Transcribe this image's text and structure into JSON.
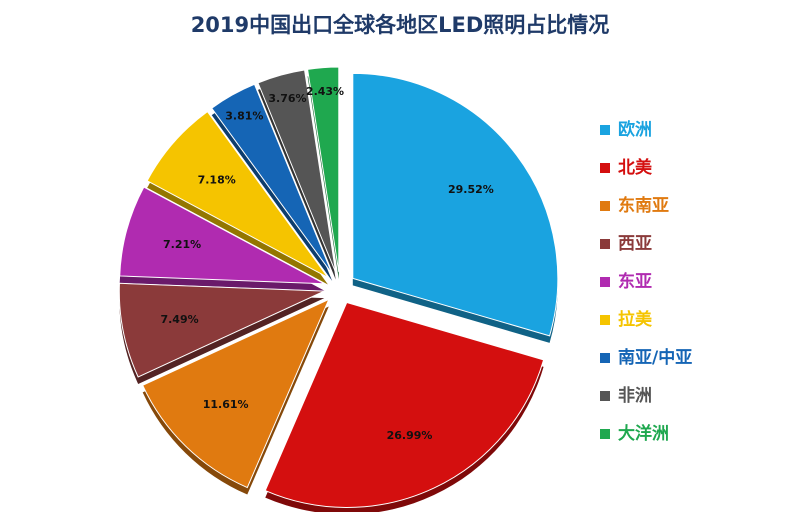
{
  "chart_data": {
    "type": "pie",
    "title": "2019中国出口全球各地区LED照明占比情况",
    "categories": [
      "欧洲",
      "北美",
      "东南亚",
      "西亚",
      "东亚",
      "拉美",
      "南亚/中亚",
      "非洲",
      "大洋洲"
    ],
    "values": [
      29.52,
      26.99,
      11.61,
      7.49,
      7.21,
      7.18,
      3.81,
      3.76,
      2.43
    ],
    "value_labels": [
      "29.52%",
      "26.99%",
      "11.61%",
      "7.49%",
      "7.21%",
      "7.18%",
      "3.81%",
      "3.76%",
      "2.43%"
    ],
    "colors": [
      "#1aa3e0",
      "#d40f0f",
      "#e07a10",
      "#8b3a3a",
      "#b02bb0",
      "#f5c400",
      "#1565b5",
      "#555555",
      "#1fa84f"
    ],
    "legend": "right"
  }
}
